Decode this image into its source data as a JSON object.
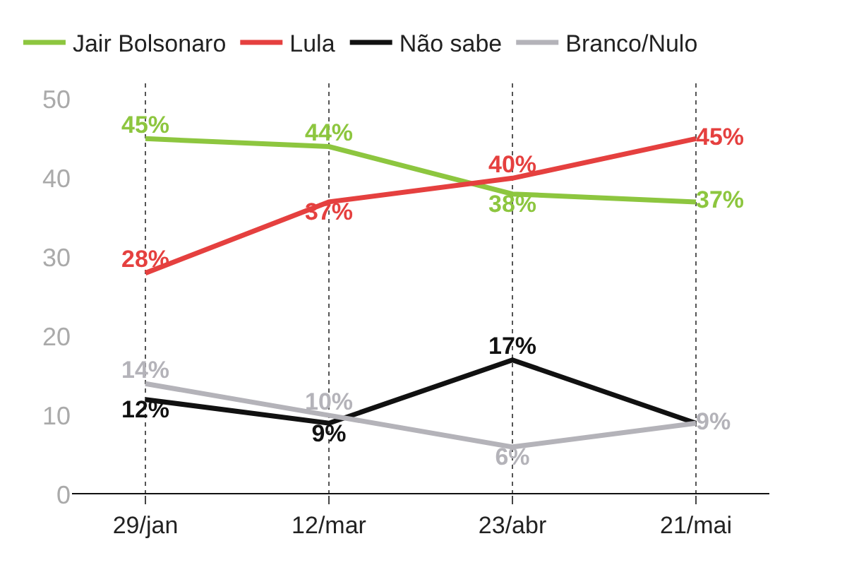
{
  "chart_data": {
    "type": "line",
    "categories": [
      "29/jan",
      "12/mar",
      "23/abr",
      "21/mai"
    ],
    "series": [
      {
        "name": "Jair Bolsonaro",
        "color": "#8dc63f",
        "values": [
          45,
          44,
          38,
          37
        ],
        "value_labels": [
          "45%",
          "44%",
          "38%",
          "37%"
        ]
      },
      {
        "name": "Lula",
        "color": "#e5403f",
        "values": [
          28,
          37,
          40,
          45
        ],
        "value_labels": [
          "28%",
          "37%",
          "40%",
          "45%"
        ]
      },
      {
        "name": "Não sabe",
        "color": "#111111",
        "values": [
          12,
          9,
          17,
          9
        ],
        "value_labels": [
          "12%",
          "9%",
          "17%",
          null
        ]
      },
      {
        "name": "Branco/Nulo",
        "color": "#b4b3b9",
        "values": [
          14,
          10,
          6,
          9
        ],
        "value_labels": [
          "14%",
          "10%",
          "6%",
          "9%"
        ]
      }
    ],
    "ylim": [
      0,
      52
    ],
    "yticks": [
      0,
      10,
      20,
      30,
      40,
      50
    ],
    "grid": "x",
    "legend": "top left",
    "marker": "none",
    "line_style": "solid"
  }
}
